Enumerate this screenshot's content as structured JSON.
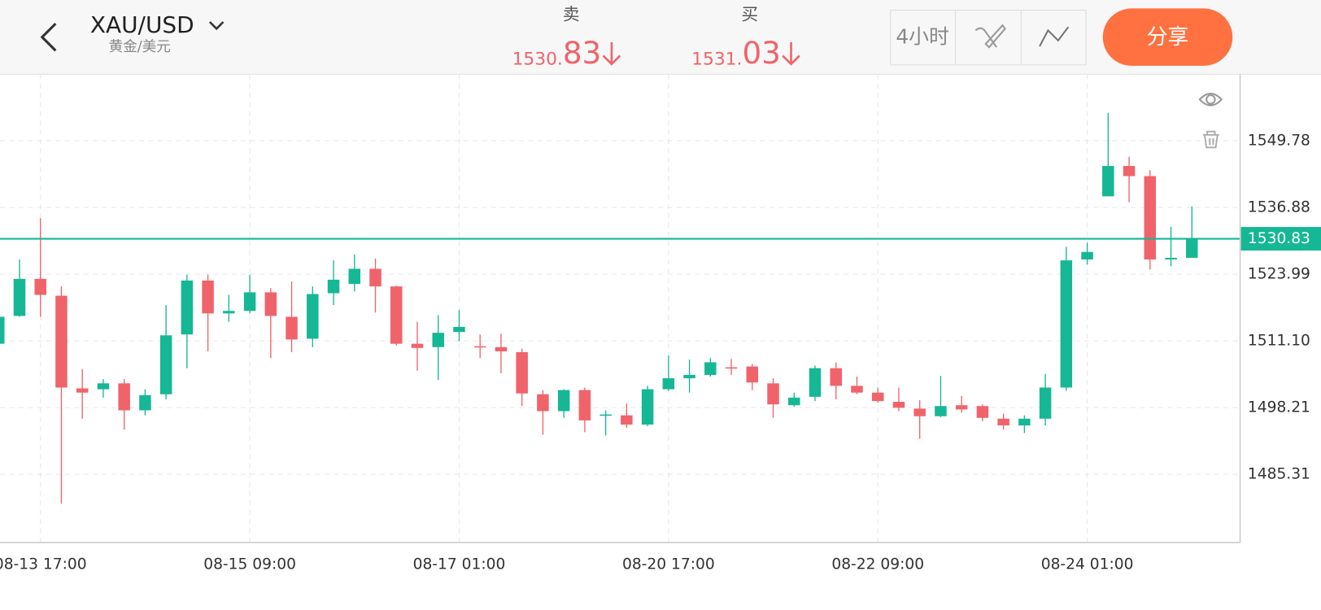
{
  "header": {
    "symbol": "XAU/USD",
    "symbol_name": "黄金/美元",
    "sell": {
      "label": "卖",
      "price_main": "1530.",
      "price_pip": "83"
    },
    "buy": {
      "label": "买",
      "price_main": "1531.",
      "price_pip": "03"
    },
    "period_button": "4小时",
    "share_button": "分享"
  },
  "chart_data": {
    "type": "candlestick",
    "categories": [
      null,
      null,
      "08-13 17:00",
      null,
      null,
      null,
      null,
      null,
      null,
      null,
      null,
      null,
      "08-15 09:00",
      null,
      null,
      null,
      null,
      null,
      null,
      null,
      null,
      null,
      "08-17 01:00",
      null,
      null,
      null,
      null,
      null,
      null,
      null,
      null,
      null,
      "08-20 17:00",
      null,
      null,
      null,
      null,
      null,
      null,
      null,
      null,
      null,
      "08-22 09:00",
      null,
      null,
      null,
      null,
      null,
      null,
      null,
      null,
      null,
      "08-24 01:00",
      null,
      null,
      null,
      null,
      null
    ],
    "open": [
      1510.54,
      1515.92,
      1523.08,
      1519.82,
      1501.92,
      1501.75,
      1502.89,
      1497.68,
      1500.78,
      1512.34,
      1522.76,
      1516.41,
      1516.89,
      1520.48,
      1515.75,
      1511.52,
      1520.31,
      1522.1,
      1525.03,
      1521.62,
      1510.54,
      1509.89,
      1512.82,
      1510.06,
      1509.89,
      1508.92,
      1500.78,
      1497.52,
      1501.59,
      1496.71,
      1496.71,
      1494.92,
      1501.75,
      1503.87,
      1504.52,
      1505.99,
      1506.15,
      1502.89,
      1498.66,
      1500.29,
      1505.82,
      1502.41,
      1501.1,
      1499.31,
      1498.01,
      1496.54,
      1498.66,
      1498.5,
      1496.06,
      1494.75,
      1496.06,
      1502.08,
      1526.83,
      1539.04,
      1544.9,
      1542.94,
      1526.83,
      1527.15
    ],
    "high": [
      1516.41,
      1526.83,
      1534.8,
      1521.62,
      1505.66,
      1503.71,
      1503.71,
      1501.75,
      1518.03,
      1523.89,
      1523.89,
      1519.99,
      1523.89,
      1521.29,
      1522.59,
      1521.62,
      1526.66,
      1527.8,
      1526.99,
      1521.78,
      1514.78,
      1516.08,
      1517.06,
      1512.34,
      1512.5,
      1509.57,
      1501.59,
      1501.75,
      1502.08,
      1497.68,
      1498.99,
      1502.41,
      1508.27,
      1507.45,
      1507.78,
      1507.61,
      1506.64,
      1503.87,
      1501.1,
      1506.31,
      1506.96,
      1504.2,
      1502.08,
      1502.08,
      1499.64,
      1504.36,
      1500.45,
      1498.82,
      1497.03,
      1496.71,
      1504.68,
      1529.27,
      1530.08,
      1555.15,
      1546.69,
      1544.08,
      1533.17,
      1537.08
    ],
    "low": [
      1510.22,
      1515.75,
      1515.75,
      1479.61,
      1496.06,
      1500.13,
      1493.94,
      1496.71,
      1499.8,
      1505.82,
      1509.08,
      1514.78,
      1516.41,
      1507.78,
      1508.92,
      1509.89,
      1518.03,
      1520.64,
      1516.57,
      1510.22,
      1505.34,
      1503.54,
      1511.03,
      1507.78,
      1504.85,
      1498.5,
      1492.96,
      1496.22,
      1493.45,
      1492.8,
      1494.27,
      1494.59,
      1501.43,
      1501.1,
      1504.2,
      1504.52,
      1501.59,
      1496.22,
      1498.34,
      1499.47,
      1499.8,
      1500.78,
      1499.15,
      1497.52,
      1492.15,
      1496.38,
      1497.2,
      1495.57,
      1493.94,
      1493.29,
      1494.75,
      1501.43,
      1525.85,
      1539.04,
      1537.9,
      1524.87,
      1525.52,
      1527.15
    ],
    "close": [
      1515.75,
      1523.08,
      1519.99,
      1502.08,
      1501.1,
      1502.89,
      1497.68,
      1500.61,
      1512.17,
      1522.76,
      1516.41,
      1516.89,
      1520.48,
      1515.92,
      1511.36,
      1520.15,
      1522.92,
      1525.03,
      1521.62,
      1510.54,
      1509.73,
      1512.66,
      1513.8,
      1509.89,
      1509.08,
      1500.94,
      1497.52,
      1501.59,
      1495.73,
      1496.87,
      1494.92,
      1501.75,
      1503.87,
      1504.52,
      1506.96,
      1505.82,
      1503.06,
      1498.82,
      1500.13,
      1505.82,
      1502.41,
      1501.1,
      1499.47,
      1498.17,
      1496.54,
      1498.5,
      1497.85,
      1496.22,
      1494.75,
      1496.06,
      1502.08,
      1526.66,
      1528.29,
      1544.9,
      1542.94,
      1526.83,
      1527.15,
      1530.83
    ],
    "up_color": "#16b795",
    "down_color": "#f0636b",
    "ylim": [
      1472.12,
      1562.64
    ],
    "yticks": [
      1485.31,
      1498.21,
      {
        "value": 1511.1,
        "label": "1511.10"
      },
      1523.99,
      1536.88,
      1549.78
    ],
    "grid": true,
    "current_price": 1530.83,
    "current_price_color": "#16b795"
  }
}
